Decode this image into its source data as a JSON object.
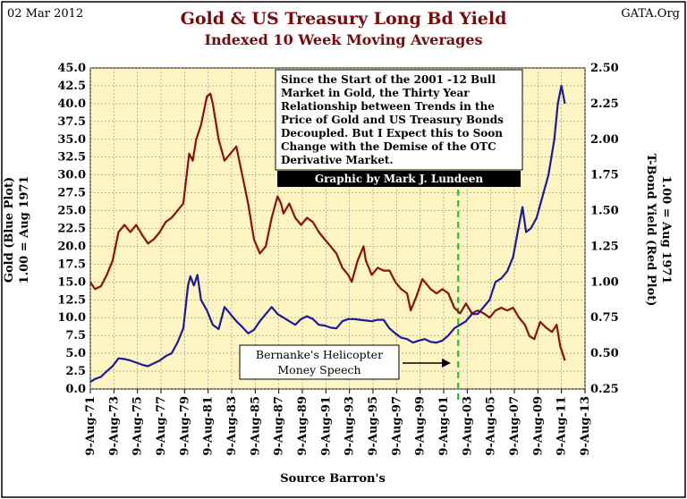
{
  "header": {
    "date": "02 Mar 2012",
    "site": "GATA.Org",
    "title": "Gold & US Treasury Long Bd Yield",
    "subtitle": "Indexed 10 Week Moving Averages"
  },
  "annotations": {
    "note_lines": [
      "Since the Start of the 2001 -12 Bull",
      "Market in Gold, the Thirty Year",
      "Relationship between Trends in the",
      "Price of Gold and US Treasury Bonds",
      "Decoupled.  But I Expect this to Soon",
      "Change with the Demise of the OTC",
      "Derivative Market."
    ],
    "credit": "Graphic by Mark J. Lundeen",
    "bernanke_lines": [
      "Bernanke's Helicopter",
      "Money Speech"
    ],
    "bernanke_date": "2002-11"
  },
  "colors": {
    "plot_bg": "#fff5c2",
    "grid": "#8c8c8c",
    "gold_line": "#1a1a9c",
    "bond_line": "#8b1010",
    "marker": "#22bb22",
    "title": "#7a0a0a"
  },
  "chart_data": {
    "type": "line",
    "x_tick_labels": [
      "9-Aug-71",
      "9-Aug-73",
      "9-Aug-75",
      "9-Aug-77",
      "9-Aug-79",
      "9-Aug-81",
      "9-Aug-83",
      "9-Aug-85",
      "9-Aug-87",
      "9-Aug-89",
      "9-Aug-91",
      "9-Aug-93",
      "9-Aug-95",
      "9-Aug-97",
      "9-Aug-99",
      "9-Aug-01",
      "9-Aug-03",
      "9-Aug-05",
      "9-Aug-07",
      "9-Aug-09",
      "9-Aug-11",
      "9-Aug-13"
    ],
    "x_range": [
      "1971-08-09",
      "2013-08-09"
    ],
    "xlabel": "Source Barron's",
    "y_left": {
      "label_lines": [
        "Gold (Blue Plot)",
        "1.00 = Aug 1971"
      ],
      "range": [
        0,
        45
      ],
      "ticks": [
        "0.0",
        "2.5",
        "5.0",
        "7.5",
        "10.0",
        "12.5",
        "15.0",
        "17.5",
        "20.0",
        "22.5",
        "25.0",
        "27.5",
        "30.0",
        "32.5",
        "35.0",
        "37.5",
        "40.0",
        "42.5",
        "45.0"
      ]
    },
    "y_right": {
      "label_lines": [
        "T-Bond Yield (Red Plot)",
        "1.00 = Aug 1971"
      ],
      "range": [
        0.25,
        2.5
      ],
      "ticks": [
        "0.25",
        "0.50",
        "0.75",
        "1.00",
        "1.25",
        "1.50",
        "1.75",
        "2.00",
        "2.25",
        "2.50"
      ]
    },
    "grid": true,
    "legend": "none",
    "series": [
      {
        "axis": "left",
        "x": [
          1971.6,
          1972.0,
          1972.5,
          1973.0,
          1973.5,
          1974.0,
          1974.5,
          1975.0,
          1975.5,
          1976.0,
          1976.5,
          1977.0,
          1977.5,
          1978.0,
          1978.5,
          1979.0,
          1979.5,
          1979.9,
          1980.1,
          1980.4,
          1980.7,
          1981.0,
          1981.5,
          1982.0,
          1982.5,
          1983.0,
          1983.5,
          1984.0,
          1984.5,
          1985.0,
          1985.5,
          1986.0,
          1986.5,
          1987.0,
          1987.5,
          1988.0,
          1988.5,
          1989.0,
          1989.5,
          1990.0,
          1990.5,
          1991.0,
          1991.5,
          1992.0,
          1992.5,
          1993.0,
          1993.5,
          1994.0,
          1994.5,
          1995.0,
          1995.5,
          1996.0,
          1996.5,
          1997.0,
          1997.5,
          1998.0,
          1998.5,
          1999.0,
          1999.5,
          2000.0,
          2000.5,
          2001.0,
          2001.5,
          2002.0,
          2002.5,
          2003.0,
          2003.5,
          2004.0,
          2004.5,
          2005.0,
          2005.5,
          2006.0,
          2006.5,
          2007.0,
          2007.5,
          2008.0,
          2008.3,
          2008.6,
          2009.0,
          2009.5,
          2010.0,
          2010.5,
          2011.0,
          2011.3,
          2011.6,
          2011.9
        ],
        "values": [
          1.0,
          1.4,
          1.7,
          2.5,
          3.2,
          4.3,
          4.2,
          4.0,
          3.7,
          3.4,
          3.2,
          3.6,
          4.0,
          4.6,
          5.0,
          6.5,
          8.5,
          14.5,
          15.8,
          14.5,
          16.0,
          12.5,
          11.0,
          9.0,
          8.4,
          11.5,
          10.5,
          9.5,
          8.7,
          7.8,
          8.3,
          9.5,
          10.5,
          11.5,
          10.5,
          10.0,
          9.5,
          9.0,
          9.8,
          10.2,
          9.8,
          9.0,
          8.9,
          8.6,
          8.5,
          9.5,
          9.8,
          9.8,
          9.7,
          9.6,
          9.5,
          9.7,
          9.7,
          8.5,
          7.8,
          7.2,
          7.0,
          6.5,
          6.8,
          7.0,
          6.6,
          6.5,
          6.8,
          7.5,
          8.5,
          9.0,
          9.5,
          10.5,
          10.5,
          11.5,
          12.5,
          15.0,
          15.5,
          16.5,
          18.5,
          23.0,
          25.5,
          22.0,
          22.5,
          24.0,
          27.0,
          30.0,
          35.0,
          40.0,
          42.5,
          40.0
        ]
      },
      {
        "axis": "right",
        "x": [
          1971.6,
          1972.0,
          1972.5,
          1973.0,
          1973.5,
          1974.0,
          1974.5,
          1975.0,
          1975.5,
          1976.0,
          1976.5,
          1977.0,
          1977.5,
          1978.0,
          1978.5,
          1979.0,
          1979.5,
          1980.0,
          1980.3,
          1980.6,
          1981.0,
          1981.5,
          1981.8,
          1982.0,
          1982.5,
          1983.0,
          1983.5,
          1984.0,
          1984.5,
          1985.0,
          1985.5,
          1986.0,
          1986.5,
          1987.0,
          1987.5,
          1987.8,
          1988.0,
          1988.5,
          1989.0,
          1989.5,
          1990.0,
          1990.5,
          1991.0,
          1991.5,
          1992.0,
          1992.5,
          1993.0,
          1993.5,
          1993.8,
          1994.3,
          1994.8,
          1995.0,
          1995.5,
          1996.0,
          1996.5,
          1997.0,
          1997.5,
          1998.0,
          1998.5,
          1998.8,
          1999.3,
          1999.8,
          2000.0,
          2000.5,
          2001.0,
          2001.5,
          2002.0,
          2002.5,
          2003.0,
          2003.5,
          2004.0,
          2004.5,
          2005.0,
          2005.5,
          2006.0,
          2006.5,
          2007.0,
          2007.5,
          2008.0,
          2008.5,
          2008.9,
          2009.3,
          2009.8,
          2010.3,
          2010.8,
          2011.2,
          2011.5,
          2011.9
        ],
        "values": [
          1.0,
          0.95,
          0.97,
          1.05,
          1.15,
          1.35,
          1.4,
          1.35,
          1.4,
          1.33,
          1.27,
          1.3,
          1.35,
          1.42,
          1.45,
          1.5,
          1.55,
          1.9,
          1.85,
          2.0,
          2.1,
          2.3,
          2.32,
          2.25,
          2.0,
          1.85,
          1.9,
          1.95,
          1.75,
          1.55,
          1.3,
          1.2,
          1.25,
          1.45,
          1.6,
          1.55,
          1.48,
          1.55,
          1.45,
          1.4,
          1.45,
          1.42,
          1.35,
          1.3,
          1.25,
          1.2,
          1.1,
          1.05,
          1.0,
          1.15,
          1.25,
          1.15,
          1.05,
          1.1,
          1.08,
          1.08,
          1.0,
          0.95,
          0.92,
          0.8,
          0.9,
          1.02,
          1.0,
          0.95,
          0.92,
          0.95,
          0.92,
          0.82,
          0.78,
          0.85,
          0.78,
          0.8,
          0.78,
          0.75,
          0.8,
          0.82,
          0.8,
          0.82,
          0.75,
          0.7,
          0.62,
          0.6,
          0.72,
          0.68,
          0.65,
          0.7,
          0.55,
          0.45
        ]
      }
    ]
  }
}
